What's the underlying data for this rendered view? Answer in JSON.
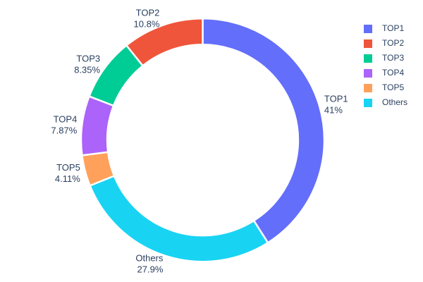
{
  "figure": {
    "background": "#ffffff",
    "text_color": "#2a3f5f"
  },
  "chart_data": {
    "type": "pie",
    "subtype": "donut",
    "hole": 0.785,
    "labels": [
      "TOP1",
      "TOP2",
      "TOP3",
      "TOP4",
      "TOP5",
      "Others"
    ],
    "values": [
      41,
      10.8,
      8.35,
      7.87,
      4.11,
      27.9
    ],
    "percent_labels": [
      "41%",
      "10.8%",
      "8.35%",
      "7.87%",
      "4.11%",
      "27.9%"
    ],
    "colors": [
      "#636efa",
      "#ef553b",
      "#00cc96",
      "#ab63fa",
      "#ffa15a",
      "#19d3f3"
    ],
    "label_placement": "outside, label name over percentage",
    "first_slice_start": "12 o'clock, largest slice clockwise, remaining counterclockwise",
    "legend": {
      "position": "top-right",
      "entries": [
        "TOP1",
        "TOP2",
        "TOP3",
        "TOP4",
        "TOP5",
        "Others"
      ]
    }
  }
}
